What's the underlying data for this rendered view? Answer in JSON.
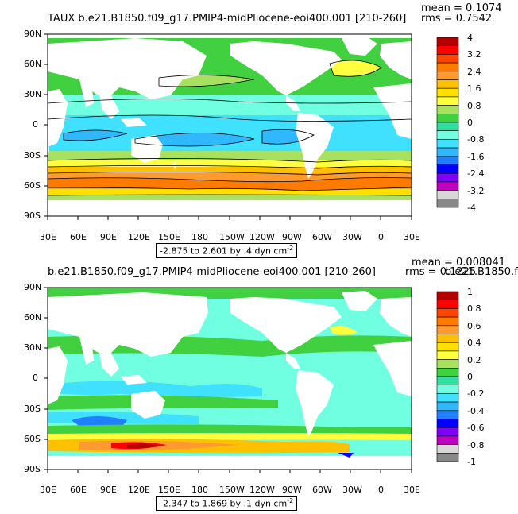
{
  "panels": [
    {
      "title": "TAUX  b.e21.B1850.f09_g17.PMIP4-midPliocene-eoi400.001  [210-260]",
      "mean_label": "mean = 0.1074",
      "rms_label": "rms = 0.7542",
      "range_text": "-2.875 to 2.601 by .4 dyn cm",
      "range_sup": "-2",
      "lat_labels": [
        "90N",
        "60N",
        "30N",
        "0",
        "30S",
        "60S",
        "90S"
      ],
      "lon_labels": [
        "30E",
        "60E",
        "90E",
        "120E",
        "150E",
        "180",
        "150W",
        "120W",
        "90W",
        "60W",
        "30W",
        "0",
        "30E"
      ],
      "colorbar": {
        "labels": [
          "4",
          "3.2",
          "2.4",
          "1.6",
          "0.8",
          "0",
          "-0.8",
          "-1.6",
          "-2.4",
          "-3.2",
          "-4"
        ],
        "colors": [
          "#b40000",
          "#ff0000",
          "#ff4400",
          "#ff7a00",
          "#ff9a30",
          "#ffc000",
          "#ffe000",
          "#ffff40",
          "#a8e060",
          "#40d040",
          "#30e0a0",
          "#70ffe0",
          "#40e0ff",
          "#30b8ff",
          "#2080ff",
          "#0000ff",
          "#8000ff",
          "#c000c0",
          "#d8d8d8",
          "#888888"
        ]
      }
    },
    {
      "title": "b.e21.B1850.f09_g17.PMIP4-midPliocene-eoi400.001  [210-260]",
      "mean_label": "mean = 0.008041",
      "rms_label": "rms = 0.1225",
      "overlap_text": "b.e21.B1850.f",
      "range_text": "-2.347 to 1.869 by .1 dyn cm",
      "range_sup": "-2",
      "lat_labels": [
        "90N",
        "60N",
        "30N",
        "0",
        "30S",
        "60S",
        "90S"
      ],
      "lon_labels": [
        "30E",
        "60E",
        "90E",
        "120E",
        "150E",
        "180",
        "150W",
        "120W",
        "90W",
        "60W",
        "30W",
        "0",
        "30E"
      ],
      "colorbar": {
        "labels": [
          "1",
          "0.8",
          "0.6",
          "0.4",
          "0.2",
          "0",
          "-0.2",
          "-0.4",
          "-0.6",
          "-0.8",
          "-1"
        ],
        "colors": [
          "#b40000",
          "#ff0000",
          "#ff4400",
          "#ff7a00",
          "#ff9a30",
          "#ffc000",
          "#ffe000",
          "#ffff40",
          "#a8e060",
          "#40d040",
          "#30e0a0",
          "#70ffe0",
          "#40e0ff",
          "#30b8ff",
          "#2080ff",
          "#0000ff",
          "#8000ff",
          "#c000c0",
          "#d8d8d8",
          "#888888"
        ]
      }
    }
  ]
}
